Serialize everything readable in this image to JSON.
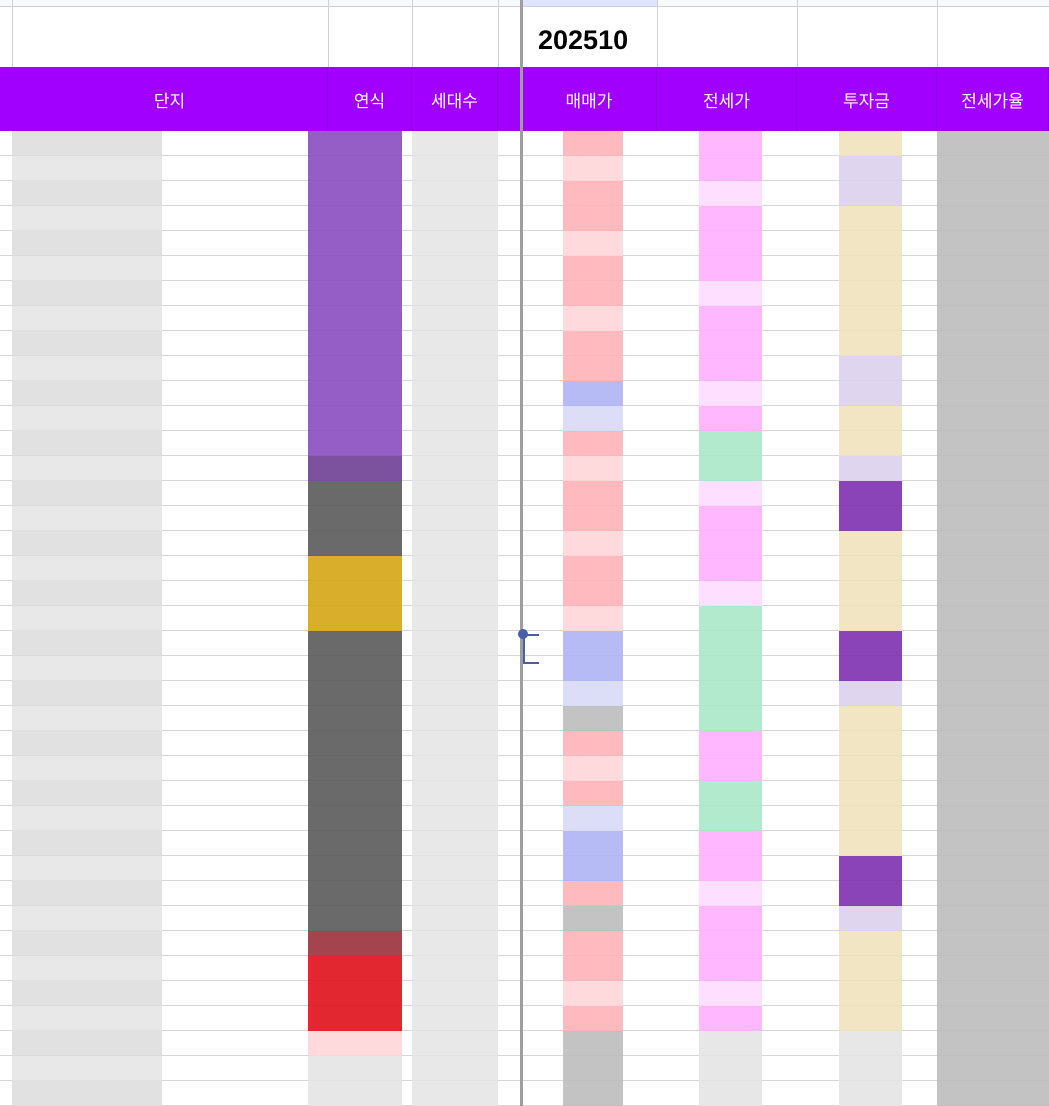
{
  "sheet": {
    "period_value": "202510",
    "columns": [
      {
        "key": "complex",
        "label": "단지"
      },
      {
        "key": "year",
        "label": "연식"
      },
      {
        "key": "households",
        "label": "세대수"
      },
      {
        "key": "sale_price",
        "label": "매매가"
      },
      {
        "key": "jeonse_price",
        "label": "전세가"
      },
      {
        "key": "investment",
        "label": "투자금"
      },
      {
        "key": "jeonse_ratio",
        "label": "전세가율"
      }
    ],
    "header_color": "#a100ff",
    "heat_colors": {
      "purple": "#8a4cc0",
      "light_purple": "#c9b0e0",
      "dark_purple": "#6e3f93",
      "dark_gray": "#5a5a5a",
      "gold": "#d4a514",
      "dark_red": "#9a3038",
      "red": "#e0101a",
      "pink": "#ffb3b8",
      "light_pink": "#ffd6d9",
      "blue": "#aeb4f5",
      "light_blue": "#d8daf7",
      "magenta": "#ffb0ff",
      "light_magenta": "#ffdcff",
      "green": "#a8e8c8",
      "light_green": "#dcf5e8",
      "beige": "#f0e2bc",
      "violet": "#7e30b0",
      "lavender": "#ddd0ec",
      "gray": "#bdbdbd",
      "light_gray": "#e4e4e4",
      "white": "#ffffff"
    }
  }
}
